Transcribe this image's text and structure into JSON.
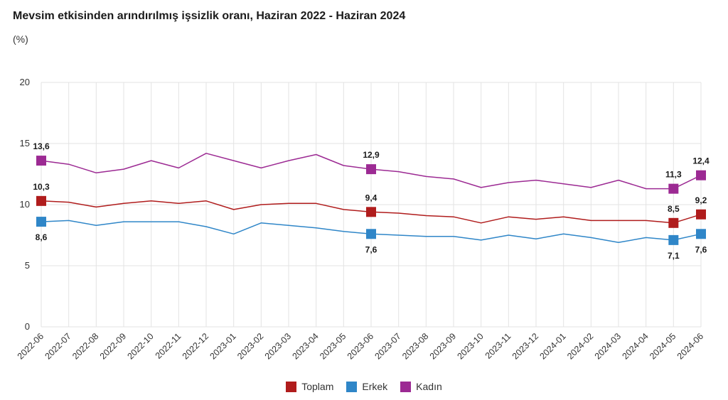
{
  "chart_data": {
    "type": "line",
    "title": "Mevsim etkisinden arındırılmış işsizlik oranı, Haziran 2022 - Haziran 2024",
    "subtitle": "(%)",
    "xlabel": "",
    "ylabel": "",
    "ylim": [
      0,
      20
    ],
    "yticks": [
      "0",
      "5",
      "10",
      "15",
      "20"
    ],
    "grid": true,
    "legend_position": "bottom",
    "categories": [
      "2022-06",
      "2022-07",
      "2022-08",
      "2022-09",
      "2022-10",
      "2022-11",
      "2022-12",
      "2023-01",
      "2023-02",
      "2023-03",
      "2023-04",
      "2023-05",
      "2023-06",
      "2023-07",
      "2023-08",
      "2023-09",
      "2023-10",
      "2023-11",
      "2023-12",
      "2024-01",
      "2024-02",
      "2024-03",
      "2024-04",
      "2024-05",
      "2024-06"
    ],
    "series": [
      {
        "name": "Toplam",
        "color": "#b01c1c",
        "values": [
          10.3,
          10.2,
          9.8,
          10.1,
          10.3,
          10.1,
          10.3,
          9.6,
          10.0,
          10.1,
          10.1,
          9.6,
          9.4,
          9.3,
          9.1,
          9.0,
          8.5,
          9.0,
          8.8,
          9.0,
          8.7,
          8.7,
          8.7,
          8.5,
          9.2
        ]
      },
      {
        "name": "Erkek",
        "color": "#2f86c8",
        "values": [
          8.6,
          8.7,
          8.3,
          8.6,
          8.6,
          8.6,
          8.2,
          7.6,
          8.5,
          8.3,
          8.1,
          7.8,
          7.6,
          7.5,
          7.4,
          7.4,
          7.1,
          7.5,
          7.2,
          7.6,
          7.3,
          6.9,
          7.3,
          7.1,
          7.6
        ]
      },
      {
        "name": "Kadın",
        "color": "#9c2a93",
        "values": [
          13.6,
          13.3,
          12.6,
          12.9,
          13.6,
          13.0,
          14.2,
          13.6,
          13.0,
          13.6,
          14.1,
          13.2,
          12.9,
          12.7,
          12.3,
          12.1,
          11.4,
          11.8,
          12.0,
          11.7,
          11.4,
          12.0,
          11.3,
          11.3,
          12.4
        ]
      }
    ],
    "markers": [
      {
        "series": 2,
        "index": 0,
        "label": "13,6",
        "position": "above"
      },
      {
        "series": 0,
        "index": 0,
        "label": "10,3",
        "position": "above"
      },
      {
        "series": 1,
        "index": 0,
        "label": "8,6",
        "position": "below"
      },
      {
        "series": 2,
        "index": 12,
        "label": "12,9",
        "position": "above"
      },
      {
        "series": 0,
        "index": 12,
        "label": "9,4",
        "position": "above"
      },
      {
        "series": 1,
        "index": 12,
        "label": "7,6",
        "position": "below"
      },
      {
        "series": 2,
        "index": 23,
        "label": "11,3",
        "position": "above"
      },
      {
        "series": 0,
        "index": 23,
        "label": "8,5",
        "position": "above"
      },
      {
        "series": 1,
        "index": 23,
        "label": "7,1",
        "position": "below"
      },
      {
        "series": 2,
        "index": 24,
        "label": "12,4",
        "position": "above"
      },
      {
        "series": 0,
        "index": 24,
        "label": "9,2",
        "position": "above"
      },
      {
        "series": 1,
        "index": 24,
        "label": "7,6",
        "position": "below"
      }
    ]
  }
}
